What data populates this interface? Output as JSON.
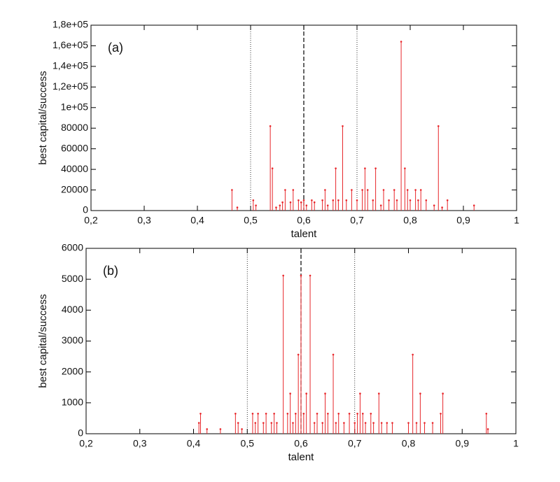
{
  "chart_data": [
    {
      "type": "stem",
      "panel_label": "(a)",
      "x_label": "talent",
      "y_label": "best capital/success",
      "xlim": [
        0.2,
        1
      ],
      "ylim": [
        0,
        180000
      ],
      "grid": false,
      "xticks": [
        {
          "value": 0.2,
          "label": "0,2"
        },
        {
          "value": 0.3,
          "label": "0,3"
        },
        {
          "value": 0.4,
          "label": "0,4"
        },
        {
          "value": 0.5,
          "label": "0,5"
        },
        {
          "value": 0.6,
          "label": "0,6"
        },
        {
          "value": 0.7,
          "label": "0,7"
        },
        {
          "value": 0.8,
          "label": "0,8"
        },
        {
          "value": 0.9,
          "label": "0,9"
        },
        1
      ],
      "yticks": [
        0,
        20000,
        40000,
        60000,
        80000,
        {
          "value": 100000,
          "label": "1e+05"
        },
        {
          "value": 120000,
          "label": "1,2e+05"
        },
        {
          "value": 140000,
          "label": "1,4e+05"
        },
        {
          "value": 160000,
          "label": "1,6e+05"
        },
        {
          "value": 180000,
          "label": "1,8e+05"
        }
      ],
      "vlines": [
        {
          "x": 0.5,
          "style": "dotted"
        },
        {
          "x": 0.6,
          "style": "dashed"
        },
        {
          "x": 0.7,
          "style": "dotted"
        }
      ],
      "series": [
        {
          "color": "#e8262a",
          "x": [
            0.465,
            0.475,
            0.505,
            0.51,
            0.537,
            0.541,
            0.548,
            0.555,
            0.56,
            0.565,
            0.575,
            0.58,
            0.59,
            0.595,
            0.6,
            0.605,
            0.615,
            0.62,
            0.635,
            0.64,
            0.645,
            0.655,
            0.66,
            0.665,
            0.673,
            0.68,
            0.69,
            0.7,
            0.71,
            0.715,
            0.72,
            0.73,
            0.735,
            0.745,
            0.75,
            0.76,
            0.77,
            0.775,
            0.783,
            0.79,
            0.795,
            0.8,
            0.81,
            0.815,
            0.82,
            0.83,
            0.845,
            0.853,
            0.86,
            0.87,
            0.92
          ],
          "values": [
            20000,
            3000,
            10000,
            5000,
            82000,
            41000,
            3000,
            5000,
            8000,
            20000,
            8000,
            20000,
            10000,
            8000,
            10000,
            5000,
            10000,
            8000,
            10000,
            20000,
            5000,
            10000,
            41000,
            10000,
            82000,
            10000,
            20000,
            10000,
            20000,
            41000,
            20000,
            10000,
            41000,
            5000,
            20000,
            10000,
            20000,
            10000,
            164000,
            41000,
            20000,
            10000,
            20000,
            10000,
            20000,
            10000,
            5000,
            82000,
            3000,
            10000,
            5000
          ]
        }
      ]
    },
    {
      "type": "stem",
      "panel_label": "(b)",
      "x_label": "talent",
      "y_label": "best capital/success",
      "xlim": [
        0.2,
        1
      ],
      "ylim": [
        0,
        6000
      ],
      "grid": false,
      "xticks": [
        {
          "value": 0.2,
          "label": "0,2"
        },
        {
          "value": 0.3,
          "label": "0,3"
        },
        {
          "value": 0.4,
          "label": "0,4"
        },
        {
          "value": 0.5,
          "label": "0,5"
        },
        {
          "value": 0.6,
          "label": "0,6"
        },
        {
          "value": 0.7,
          "label": "0,7"
        },
        {
          "value": 0.8,
          "label": "0,8"
        },
        {
          "value": 0.9,
          "label": "0,9"
        },
        1
      ],
      "yticks": [
        0,
        1000,
        2000,
        3000,
        4000,
        5000,
        6000
      ],
      "vlines": [
        {
          "x": 0.5,
          "style": "dotted"
        },
        {
          "x": 0.6,
          "style": "dashed"
        },
        {
          "x": 0.7,
          "style": "dotted"
        }
      ],
      "series": [
        {
          "color": "#e8262a",
          "x": [
            0.41,
            0.413,
            0.425,
            0.45,
            0.478,
            0.483,
            0.49,
            0.51,
            0.515,
            0.52,
            0.53,
            0.535,
            0.545,
            0.55,
            0.555,
            0.567,
            0.575,
            0.58,
            0.585,
            0.59,
            0.595,
            0.6,
            0.605,
            0.61,
            0.617,
            0.625,
            0.63,
            0.64,
            0.645,
            0.65,
            0.66,
            0.665,
            0.67,
            0.68,
            0.69,
            0.7,
            0.705,
            0.71,
            0.715,
            0.72,
            0.73,
            0.735,
            0.745,
            0.75,
            0.76,
            0.77,
            0.8,
            0.808,
            0.815,
            0.822,
            0.83,
            0.845,
            0.86,
            0.864,
            0.945,
            0.948
          ],
          "values": [
            350,
            650,
            150,
            150,
            650,
            350,
            150,
            650,
            350,
            650,
            350,
            650,
            350,
            650,
            350,
            5120,
            650,
            1300,
            350,
            650,
            2560,
            5120,
            650,
            1300,
            5120,
            350,
            650,
            350,
            1300,
            650,
            2560,
            350,
            650,
            350,
            650,
            350,
            650,
            1300,
            650,
            350,
            650,
            350,
            1300,
            350,
            350,
            350,
            350,
            2560,
            350,
            1300,
            350,
            350,
            650,
            1300,
            650,
            150
          ]
        }
      ]
    }
  ]
}
